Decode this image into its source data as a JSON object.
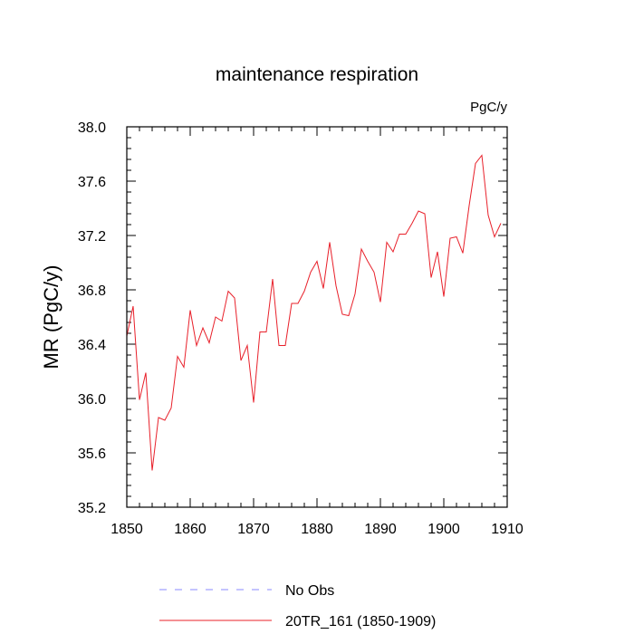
{
  "chart_data": {
    "type": "line",
    "title": "maintenance respiration",
    "units": "PgC/y",
    "ylabel": "MR  (PgC/y)",
    "xlabel": "",
    "xlim": [
      1850,
      1910
    ],
    "ylim": [
      35.2,
      38.0
    ],
    "x_ticks": [
      1850,
      1860,
      1870,
      1880,
      1890,
      1900,
      1910
    ],
    "y_ticks": [
      35.2,
      35.6,
      36.0,
      36.4,
      36.8,
      37.2,
      37.6,
      38.0
    ],
    "x_tick_labels": [
      "1850",
      "1860",
      "1870",
      "1880",
      "1890",
      "1900",
      "1910"
    ],
    "y_tick_labels": [
      "35.2",
      "35.6",
      "36.0",
      "36.4",
      "36.8",
      "37.2",
      "37.6",
      "38.0"
    ],
    "grid": false,
    "legend": [
      {
        "label": "No Obs",
        "color": "#8a8aff",
        "style": "dashed"
      },
      {
        "label": "20TR_161 (1850-1909)",
        "color": "#e8202a",
        "style": "solid"
      }
    ],
    "series": [
      {
        "name": "20TR_161 (1850-1909)",
        "color": "#e8202a",
        "x": [
          1850,
          1851,
          1852,
          1853,
          1854,
          1855,
          1856,
          1857,
          1858,
          1859,
          1860,
          1861,
          1862,
          1863,
          1864,
          1865,
          1866,
          1867,
          1868,
          1869,
          1870,
          1871,
          1872,
          1873,
          1874,
          1875,
          1876,
          1877,
          1878,
          1879,
          1880,
          1881,
          1882,
          1883,
          1884,
          1885,
          1886,
          1887,
          1888,
          1889,
          1890,
          1891,
          1892,
          1893,
          1894,
          1895,
          1896,
          1897,
          1898,
          1899,
          1900,
          1901,
          1902,
          1903,
          1904,
          1905,
          1906,
          1907,
          1908,
          1909
        ],
        "values": [
          36.46,
          36.68,
          35.99,
          36.19,
          35.47,
          35.86,
          35.84,
          35.93,
          36.31,
          36.23,
          36.65,
          36.39,
          36.52,
          36.41,
          36.6,
          36.57,
          36.79,
          36.74,
          36.28,
          36.39,
          35.97,
          36.49,
          36.49,
          36.88,
          36.39,
          36.39,
          36.7,
          36.7,
          36.79,
          36.93,
          37.01,
          36.81,
          37.15,
          36.83,
          36.62,
          36.61,
          36.77,
          37.1,
          37.01,
          36.93,
          36.71,
          37.15,
          37.08,
          37.21,
          37.21,
          37.29,
          37.38,
          37.36,
          36.89,
          37.08,
          36.75,
          37.18,
          37.19,
          37.07,
          37.42,
          37.73,
          37.79,
          37.35,
          37.19,
          37.29
        ]
      }
    ]
  }
}
